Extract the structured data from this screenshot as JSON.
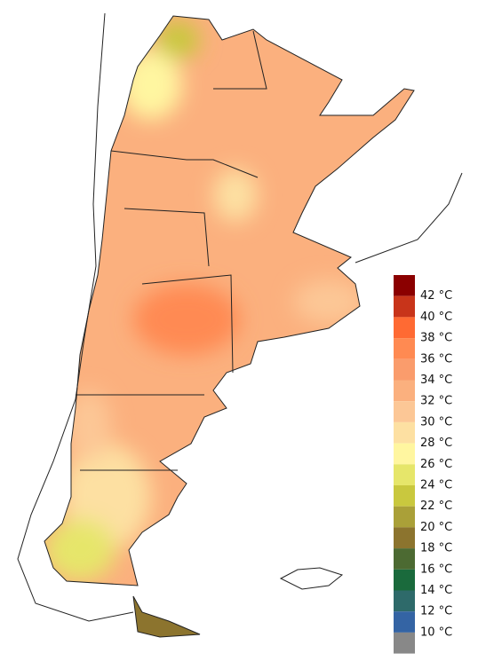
{
  "legend": {
    "swatches": [
      "#8b0000",
      "#c8341a",
      "#ff6a33",
      "#ff8a52",
      "#fa9c6c",
      "#fbb07e",
      "#fcc796",
      "#fde0a2",
      "#fff6a0",
      "#e6e66a",
      "#c9c83e",
      "#aaa038",
      "#8c742e",
      "#4c6a32",
      "#1a6a3c",
      "#2e6a6a",
      "#3464a4",
      "#888888"
    ],
    "labels": [
      "42 °C",
      "40 °C",
      "38 °C",
      "36 °C",
      "34 °C",
      "32 °C",
      "30 °C",
      "28 °C",
      "26 °C",
      "24 °C",
      "22 °C",
      "20 °C",
      "18 °C",
      "16 °C",
      "14 °C",
      "12 °C",
      "10 °C"
    ]
  }
}
